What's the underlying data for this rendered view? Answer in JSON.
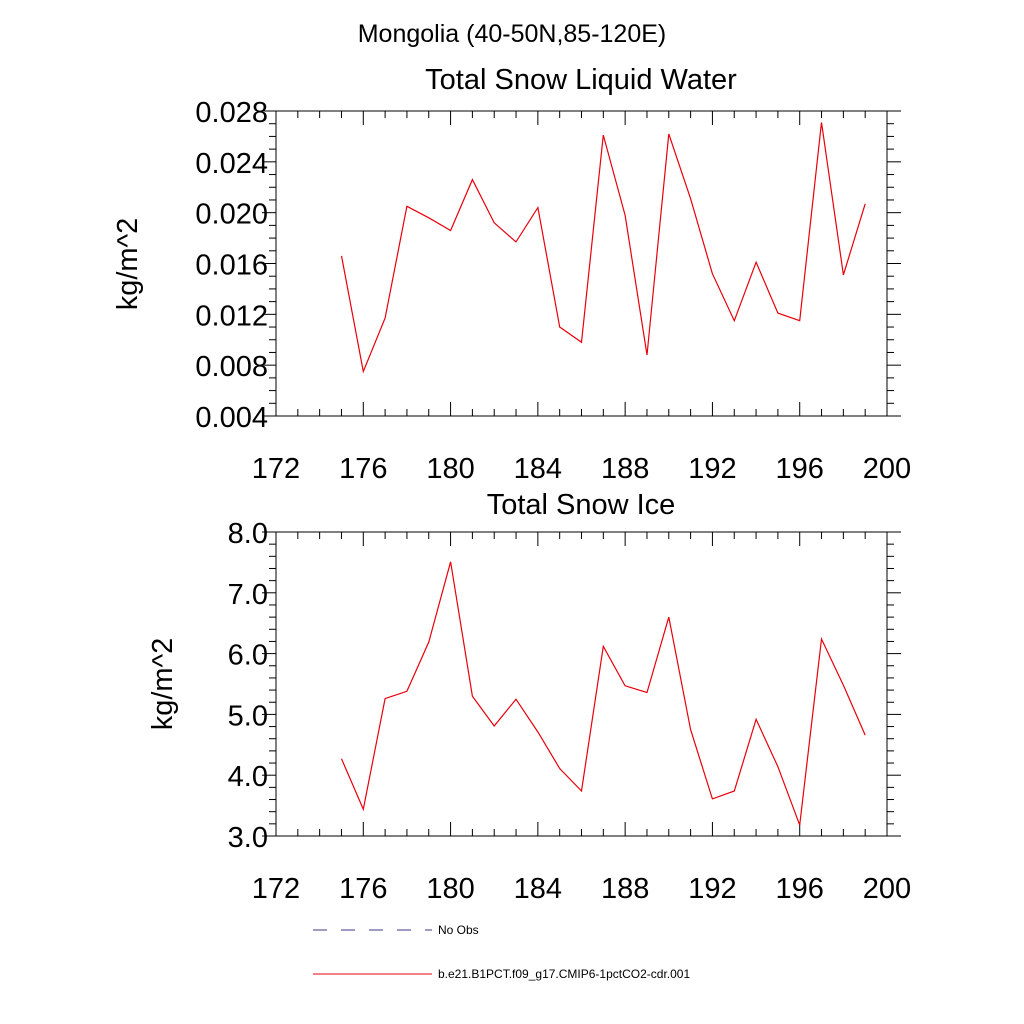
{
  "suptitle": "Mongolia (40-50N,85-120E)",
  "legend": [
    {
      "label": "No Obs",
      "color": "#3a3a8c",
      "dash": true
    },
    {
      "label": "b.e21.B1PCT.f09_g17.CMIP6-1pctCO2-cdr.001",
      "color": "#e8000b",
      "dash": false
    }
  ],
  "chart_data": [
    {
      "type": "line",
      "title": "Total Snow Liquid Water",
      "xlabel": "",
      "ylabel": "kg/m^2",
      "xlim": [
        172,
        200
      ],
      "ylim": [
        0.004,
        0.028
      ],
      "xticks": [
        172,
        176,
        180,
        184,
        188,
        192,
        196,
        200
      ],
      "xtick_labels": [
        "172",
        "176",
        "180",
        "184",
        "188",
        "192",
        "196",
        "200"
      ],
      "yticks": [
        0.004,
        0.008,
        0.012,
        0.016,
        0.02,
        0.024,
        0.028
      ],
      "ytick_labels": [
        "0.004",
        "0.008",
        "0.012",
        "0.016",
        "0.020",
        "0.024",
        "0.028"
      ],
      "series": [
        {
          "name": "b.e21.B1PCT.f09_g17.CMIP6-1pctCO2-cdr.001",
          "color": "#e8000b",
          "x": [
            175,
            176,
            177,
            178,
            179,
            180,
            181,
            182,
            183,
            184,
            185,
            186,
            187,
            188,
            189,
            190,
            191,
            192,
            193,
            194,
            195,
            196,
            197,
            198,
            199
          ],
          "y": [
            0.0166,
            0.0075,
            0.0117,
            0.0205,
            0.0196,
            0.0186,
            0.0226,
            0.0192,
            0.0177,
            0.0204,
            0.011,
            0.0098,
            0.0261,
            0.0198,
            0.0088,
            0.0262,
            0.0211,
            0.0152,
            0.0115,
            0.0161,
            0.0121,
            0.0115,
            0.0271,
            0.0151,
            0.0207
          ]
        }
      ]
    },
    {
      "type": "line",
      "title": "Total Snow Ice",
      "xlabel": "",
      "ylabel": "kg/m^2",
      "xlim": [
        172,
        200
      ],
      "ylim": [
        3.0,
        8.0
      ],
      "xticks": [
        172,
        176,
        180,
        184,
        188,
        192,
        196,
        200
      ],
      "xtick_labels": [
        "172",
        "176",
        "180",
        "184",
        "188",
        "192",
        "196",
        "200"
      ],
      "yticks": [
        3.0,
        4.0,
        5.0,
        6.0,
        7.0,
        8.0
      ],
      "ytick_labels": [
        "3.0",
        "4.0",
        "5.0",
        "6.0",
        "7.0",
        "8.0"
      ],
      "series": [
        {
          "name": "b.e21.B1PCT.f09_g17.CMIP6-1pctCO2-cdr.001",
          "color": "#e8000b",
          "x": [
            175,
            176,
            177,
            178,
            179,
            180,
            181,
            182,
            183,
            184,
            185,
            186,
            187,
            188,
            189,
            190,
            191,
            192,
            193,
            194,
            195,
            196,
            197,
            198,
            199
          ],
          "y": [
            4.27,
            3.44,
            5.26,
            5.38,
            6.19,
            7.51,
            5.3,
            4.81,
            5.25,
            4.71,
            4.11,
            3.74,
            6.12,
            5.47,
            5.36,
            6.6,
            4.75,
            3.61,
            3.74,
            4.92,
            4.14,
            3.18,
            6.24,
            5.48,
            4.66
          ]
        }
      ]
    }
  ]
}
